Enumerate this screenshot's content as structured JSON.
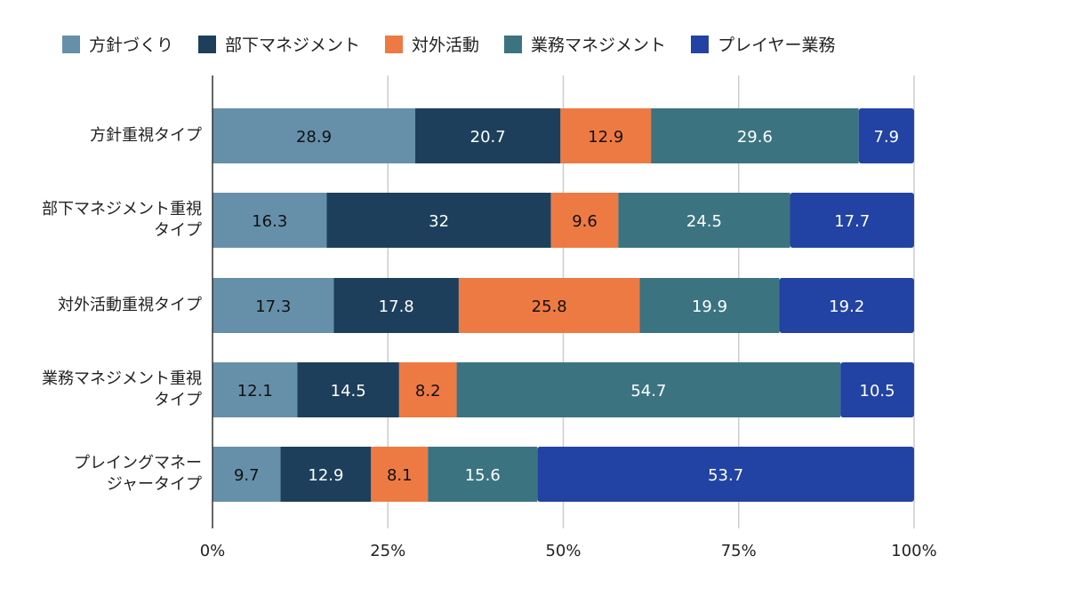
{
  "chart_data": {
    "type": "bar",
    "orientation": "horizontal",
    "stacked": true,
    "categories": [
      [
        "方針重視タイプ"
      ],
      [
        "部下マネジメント重視",
        "タイプ"
      ],
      [
        "対外活動重視タイプ"
      ],
      [
        "業務マネジメント重視",
        "タイプ"
      ],
      [
        "プレイングマネー",
        "ジャータイプ"
      ]
    ],
    "series": [
      {
        "name": "方針づくり",
        "color": "#6690aa",
        "values": [
          28.9,
          16.3,
          17.3,
          12.1,
          9.7
        ]
      },
      {
        "name": "部下マネジメント",
        "color": "#1d3f5b",
        "values": [
          20.7,
          32,
          17.8,
          14.5,
          12.9
        ]
      },
      {
        "name": "対外活動",
        "color": "#ee7a43",
        "values": [
          12.9,
          9.6,
          25.8,
          8.2,
          8.1
        ]
      },
      {
        "name": "業務マネジメント",
        "color": "#3b7480",
        "values": [
          29.6,
          24.5,
          19.9,
          54.7,
          15.6
        ]
      },
      {
        "name": "プレイヤー業務",
        "color": "#2243a3",
        "values": [
          7.9,
          17.7,
          19.2,
          10.5,
          53.7
        ]
      }
    ],
    "data_labels": [
      [
        "28.9",
        "16.3",
        "17.3",
        "12.1",
        "9.7"
      ],
      [
        "20.7",
        "32",
        "17.8",
        "14.5",
        "12.9"
      ],
      [
        "12.9",
        "9.6",
        "25.8",
        "8.2",
        "8.1"
      ],
      [
        "29.6",
        "24.5",
        "19.9",
        "54.7",
        "15.6"
      ],
      [
        "7.9",
        "17.7",
        "19.2",
        "10.5",
        "53.7"
      ]
    ],
    "x_ticks": [
      "0%",
      "25%",
      "50%",
      "75%",
      "100%"
    ],
    "xlim": [
      0,
      100
    ],
    "grid": true,
    "legend": "top-left"
  }
}
